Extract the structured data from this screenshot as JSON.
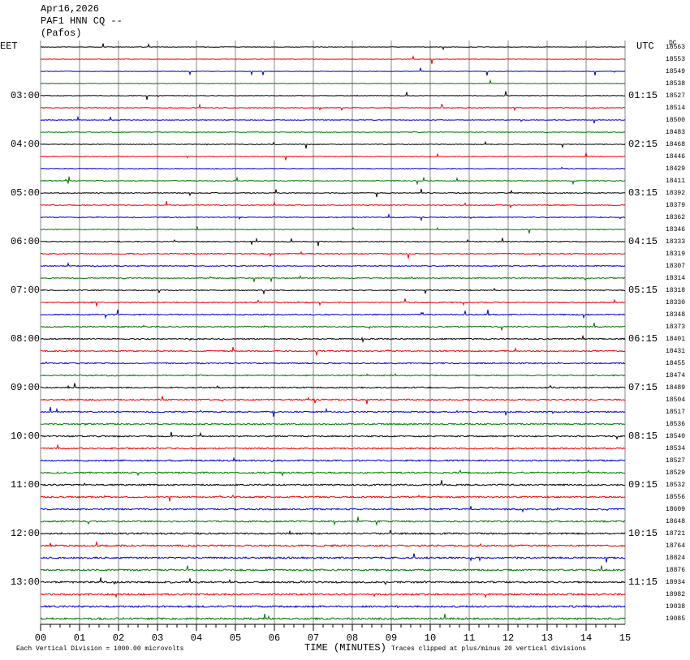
{
  "header": {
    "lines": [
      "Apr16,2026",
      "PAF1 HNN CQ --",
      "(Pafos)"
    ]
  },
  "left_axis": {
    "zone": "EET",
    "hours": [
      "03:00",
      "04:00",
      "05:00",
      "06:00",
      "07:00",
      "08:00",
      "09:00",
      "10:00",
      "11:00",
      "12:00",
      "13:00"
    ]
  },
  "right_axis": {
    "zone": "UTC",
    "hours": [
      "01:15",
      "02:15",
      "03:15",
      "04:15",
      "05:15",
      "06:15",
      "07:15",
      "08:15",
      "09:15",
      "10:15",
      "11:15"
    ]
  },
  "dc_column": {
    "title": "DC",
    "values": [
      18563,
      18553,
      18549,
      18538,
      18527,
      18514,
      18500,
      18483,
      18468,
      18446,
      18429,
      18411,
      18392,
      18379,
      18362,
      18346,
      18333,
      18319,
      18307,
      18314,
      18318,
      18330,
      18348,
      18373,
      18401,
      18431,
      18455,
      18474,
      18489,
      18504,
      18517,
      18536,
      18540,
      18534,
      18527,
      18529,
      18532,
      18556,
      18609,
      18648,
      18721,
      18764,
      18824,
      18876,
      18934,
      18982,
      19038,
      19085
    ]
  },
  "x_axis": {
    "ticks": [
      "00",
      "01",
      "02",
      "03",
      "04",
      "05",
      "06",
      "07",
      "08",
      "09",
      "10",
      "11",
      "12",
      "13",
      "14",
      "15"
    ],
    "label": "TIME (MINUTES)"
  },
  "footer": {
    "scale_note": "Each Vertical Division = 1000.00 microvolts",
    "clip_note": "Traces clipped at plus/minus 20 vertical divisions"
  }
}
